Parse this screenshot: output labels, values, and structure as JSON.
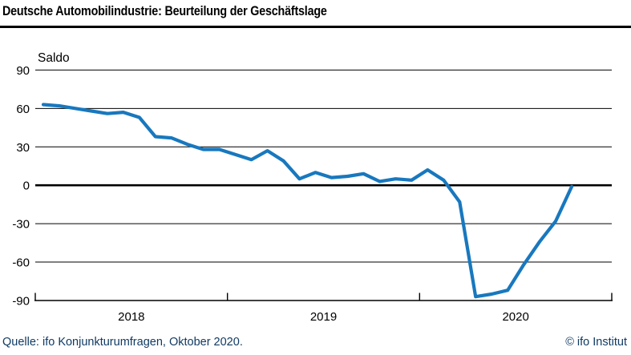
{
  "header": {
    "title": "Deutsche Automobilindustrie: Beurteilung der Geschäftslage"
  },
  "footer": {
    "source": "Quelle: ifo Konjunkturumfragen, Oktober 2020.",
    "copyright": "© ifo Institut"
  },
  "colors": {
    "line": "#1878BE",
    "axis": "#000000",
    "title_text": "#000000",
    "footer_text": "#103A63"
  },
  "chart_data": {
    "type": "line",
    "title": "Deutsche Automobilindustrie: Beurteilung der Geschäftslage",
    "ylabel": "Saldo",
    "legend": "none",
    "grid": "horizontal",
    "yticks": [
      90,
      60,
      30,
      0,
      -30,
      -60,
      -90
    ],
    "ylim": [
      -90,
      90
    ],
    "year_labels": [
      "2018",
      "2019",
      "2020"
    ],
    "x_monthly": [
      "2018-01",
      "2018-02",
      "2018-03",
      "2018-04",
      "2018-05",
      "2018-06",
      "2018-07",
      "2018-08",
      "2018-09",
      "2018-10",
      "2018-11",
      "2018-12",
      "2019-01",
      "2019-02",
      "2019-03",
      "2019-04",
      "2019-05",
      "2019-06",
      "2019-07",
      "2019-08",
      "2019-09",
      "2019-10",
      "2019-11",
      "2019-12",
      "2020-01",
      "2020-02",
      "2020-03",
      "2020-04",
      "2020-05",
      "2020-06",
      "2020-07",
      "2020-08",
      "2020-09",
      "2020-10"
    ],
    "values": [
      63,
      62,
      60,
      58,
      56,
      57,
      53,
      38,
      37,
      32,
      28,
      28,
      24,
      20,
      27,
      19,
      5,
      10,
      6,
      7,
      9,
      3,
      5,
      4,
      12,
      4,
      -13,
      -87,
      -85,
      -82,
      -62,
      -44,
      -28,
      -1
    ],
    "line_color": "#1878BE"
  }
}
